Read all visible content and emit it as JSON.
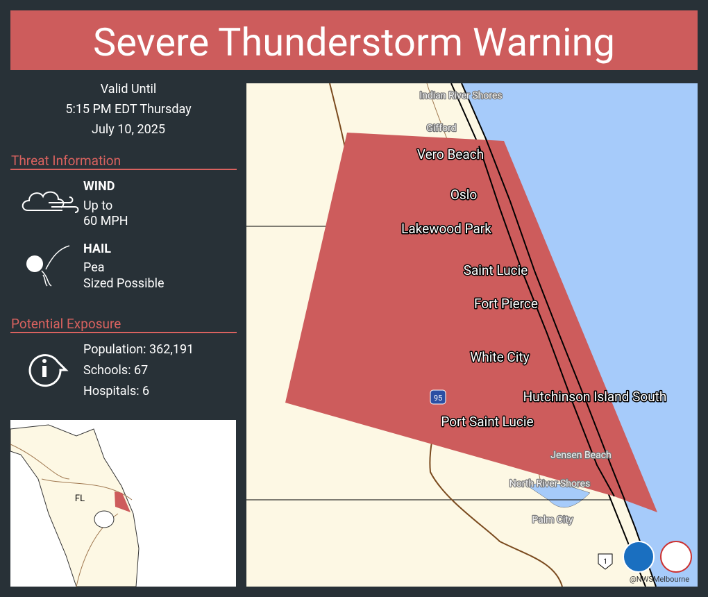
{
  "header": {
    "title": "Severe Thunderstorm Warning"
  },
  "valid": {
    "lines": [
      "Valid Until",
      "5:15 PM EDT Thursday",
      "July 10, 2025"
    ]
  },
  "threat": {
    "heading": "Threat Information",
    "wind": {
      "label": "WIND",
      "lines": [
        "Up to",
        "60  MPH"
      ]
    },
    "hail": {
      "label": "HAIL",
      "lines": [
        "Pea",
        "Sized Possible"
      ]
    }
  },
  "exposure": {
    "heading": "Potential Exposure",
    "lines": [
      "Population: 362,191",
      "Schools: 67",
      "Hospitals: 6"
    ]
  },
  "inset": {
    "label": "FL"
  },
  "map": {
    "major_places": [
      "Vero Beach",
      "Oslo",
      "Lakewood Park",
      "Saint Lucie",
      "Fort Pierce",
      "White City",
      "Hutchinson Island South",
      "Port Saint Lucie"
    ],
    "minor_places": [
      "Indian River Shores",
      "Gifford",
      "Jensen Beach",
      "North River Shores",
      "Palm City"
    ],
    "shields": [
      "95",
      "1"
    ],
    "credit": "@NWSMelbourne"
  }
}
